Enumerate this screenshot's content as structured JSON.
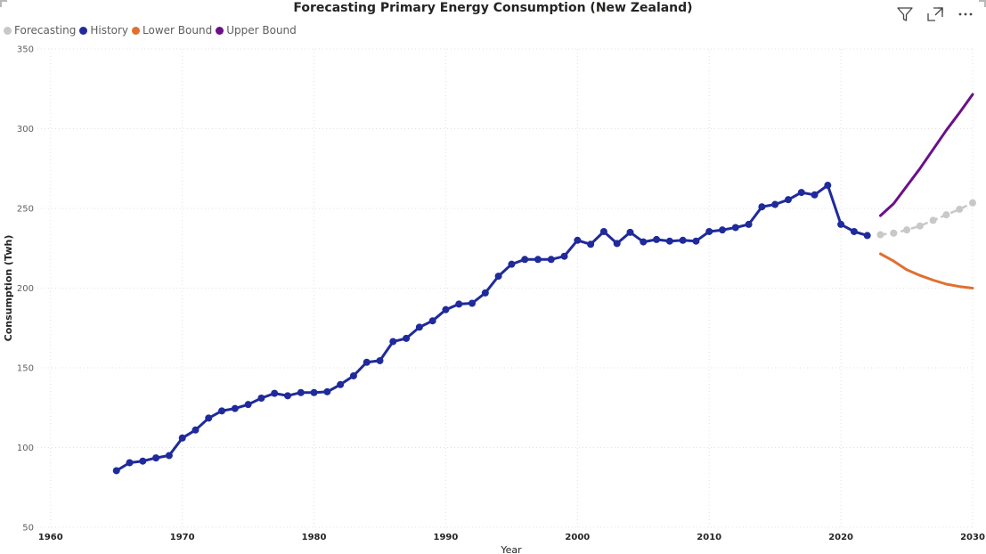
{
  "header": {
    "filter_icon": "filter-icon",
    "focus_icon": "focus-mode-icon",
    "more_icon": "more-options-icon"
  },
  "chart_data": {
    "type": "line",
    "title": "Forecasting Primary Energy Consumption (New Zealand)",
    "xlabel": "Year",
    "ylabel": "Consumption (Twh)",
    "xlim": [
      1959,
      2030
    ],
    "ylim": [
      50,
      350
    ],
    "xticks": [
      1960,
      1970,
      1980,
      1990,
      2000,
      2010,
      2020,
      2030
    ],
    "yticks": [
      50,
      100,
      150,
      200,
      250,
      300,
      350
    ],
    "grid": true,
    "legend_position": "top-left",
    "legend": [
      {
        "label": "Forecasting",
        "color": "#c8c8c8"
      },
      {
        "label": "History",
        "color": "#1f2a9b"
      },
      {
        "label": "Lower Bound",
        "color": "#e07030"
      },
      {
        "label": "Upper Bound",
        "color": "#6b0f8a"
      }
    ],
    "series": [
      {
        "name": "History",
        "color": "#1f2a9b",
        "style": "line-markers",
        "x": [
          1965,
          1966,
          1967,
          1968,
          1969,
          1970,
          1971,
          1972,
          1973,
          1974,
          1975,
          1976,
          1977,
          1978,
          1979,
          1980,
          1981,
          1982,
          1983,
          1984,
          1985,
          1986,
          1987,
          1988,
          1989,
          1990,
          1991,
          1992,
          1993,
          1994,
          1995,
          1996,
          1997,
          1998,
          1999,
          2000,
          2001,
          2002,
          2003,
          2004,
          2005,
          2006,
          2007,
          2008,
          2009,
          2010,
          2011,
          2012,
          2013,
          2014,
          2015,
          2016,
          2017,
          2018,
          2019,
          2020,
          2021,
          2022
        ],
        "y": [
          85.5,
          90.5,
          91.5,
          93.5,
          95,
          106,
          111,
          118.5,
          123,
          124.5,
          127,
          131,
          134,
          132.5,
          134.5,
          134.5,
          135,
          139.5,
          145,
          153.5,
          154.5,
          166.5,
          168.5,
          175.5,
          179.5,
          186.5,
          190,
          190.5,
          197,
          207.5,
          215,
          218,
          218,
          218,
          220,
          230,
          227.5,
          235.5,
          228,
          235,
          229,
          230.5,
          229.5,
          230,
          229.5,
          235.5,
          236.5,
          238,
          240,
          251,
          252.5,
          255.5,
          260,
          258.5,
          264.5,
          240,
          235.5,
          233
        ]
      },
      {
        "name": "Forecasting",
        "color": "#c8c8c8",
        "style": "dashed-markers",
        "x": [
          2023,
          2024,
          2025,
          2026,
          2027,
          2028,
          2029,
          2030
        ],
        "y": [
          233.5,
          234.5,
          236.5,
          239,
          242.5,
          246,
          249.5,
          253.5
        ]
      },
      {
        "name": "Lower Bound",
        "color": "#e07030",
        "style": "line",
        "x": [
          2023,
          2024,
          2025,
          2026,
          2027,
          2028,
          2029,
          2030
        ],
        "y": [
          221.5,
          217,
          211.5,
          208,
          205,
          202.5,
          201,
          200
        ]
      },
      {
        "name": "Upper Bound",
        "color": "#6b0f8a",
        "style": "line",
        "x": [
          2023,
          2024,
          2025,
          2026,
          2027,
          2028,
          2029,
          2030
        ],
        "y": [
          245.5,
          253,
          264,
          275,
          287,
          299,
          310,
          321.5
        ]
      }
    ]
  }
}
